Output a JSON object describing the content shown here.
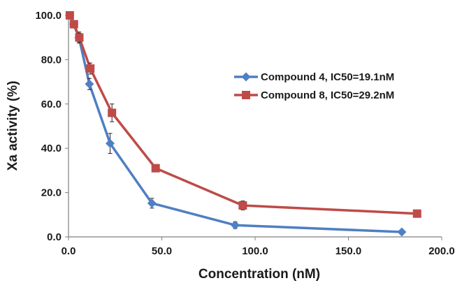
{
  "chart_data": {
    "type": "line",
    "xlabel": "Concentration (nM)",
    "ylabel": "Xa activity (%)",
    "xlim": [
      0,
      200
    ],
    "ylim": [
      0,
      100
    ],
    "x_ticks": [
      "0.0",
      "50.0",
      "100.0",
      "150.0",
      "200.0"
    ],
    "y_ticks": [
      "0.0",
      "20.0",
      "40.0",
      "60.0",
      "80.0",
      "100.0"
    ],
    "grid": false,
    "legend_position": "right",
    "series": [
      {
        "name": "Compound 4, IC50=19.1nM",
        "color": "#4f7fc4",
        "marker": "diamond",
        "x": [
          0.7,
          2.8,
          5.6,
          11.2,
          22.3,
          44.7,
          89.3,
          178.6
        ],
        "y": [
          100,
          96,
          90,
          69,
          42.2,
          15.2,
          5.3,
          2.2
        ],
        "err": [
          0.8,
          1.5,
          2.5,
          2.5,
          4.5,
          2.2,
          1.5,
          0.5
        ]
      },
      {
        "name": "Compound 8, IC50=29.2nM",
        "color": "#be4b48",
        "marker": "square",
        "x": [
          0.7,
          2.9,
          5.8,
          11.7,
          23.3,
          46.7,
          93.4,
          186.8
        ],
        "y": [
          100,
          96,
          90,
          76,
          56,
          31,
          14.2,
          10.5
        ],
        "err": [
          0.5,
          1.5,
          2.0,
          2.5,
          4.0,
          1.0,
          2.0,
          0.5
        ]
      }
    ]
  }
}
